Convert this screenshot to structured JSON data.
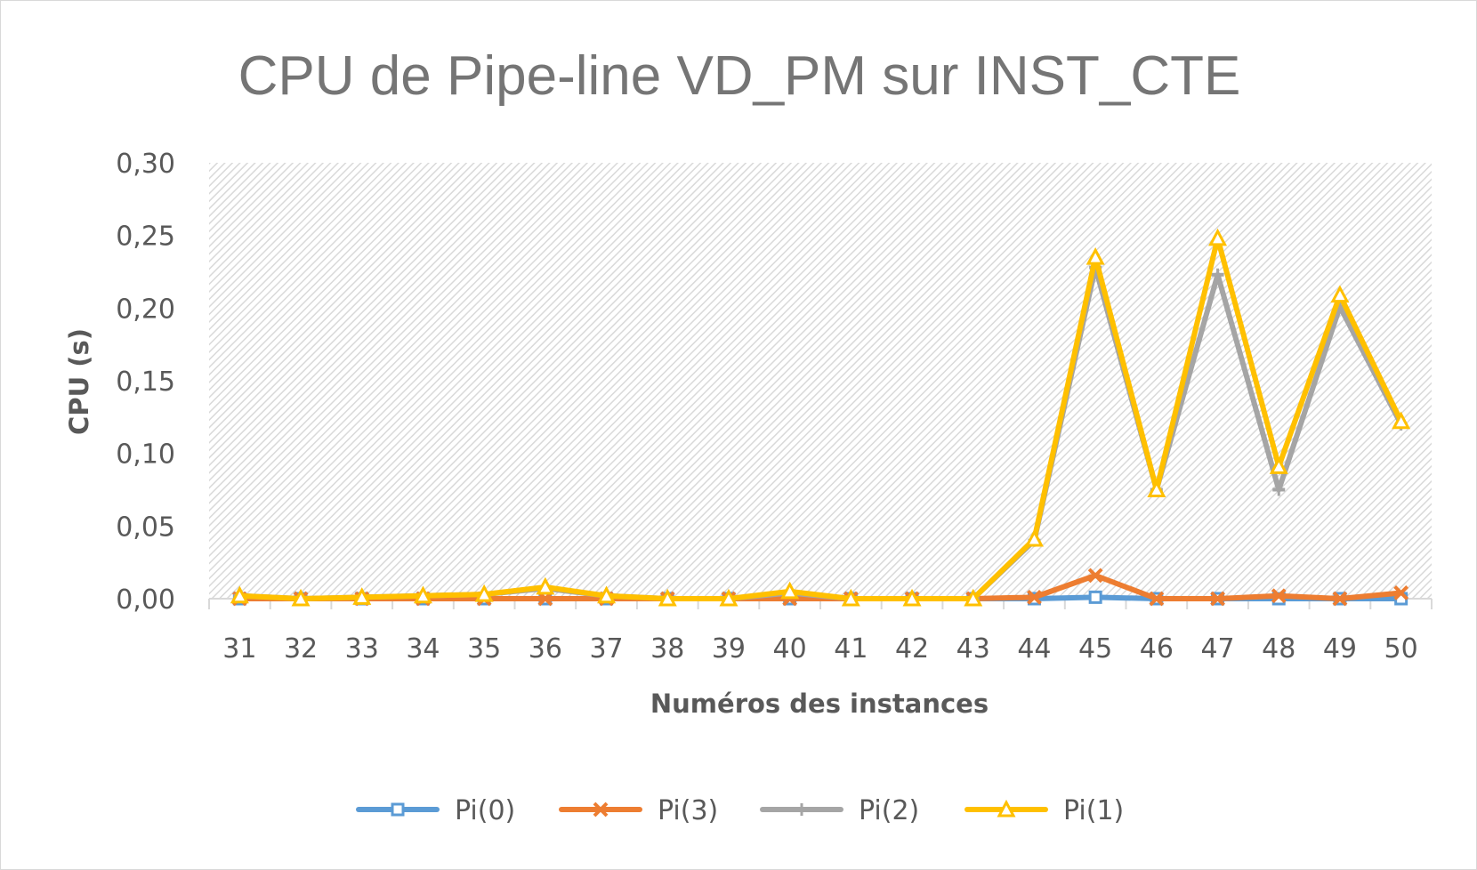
{
  "chart_data": {
    "type": "line",
    "title": "CPU de Pipe-line VD_PM sur INST_CTE",
    "xlabel": "Numéros des instances",
    "ylabel": "CPU (s)",
    "ylim": [
      0,
      0.3
    ],
    "yticks": [
      "0,00",
      "0,05",
      "0,10",
      "0,15",
      "0,20",
      "0,25",
      "0,30"
    ],
    "categories": [
      "31",
      "32",
      "33",
      "34",
      "35",
      "36",
      "37",
      "38",
      "39",
      "40",
      "41",
      "42",
      "43",
      "44",
      "45",
      "46",
      "47",
      "48",
      "49",
      "50"
    ],
    "legend_position": "bottom",
    "background": "diagonal-hatch",
    "series": [
      {
        "name": "Pi(0)",
        "color": "#5b9bd5",
        "marker": "square",
        "values": [
          0,
          0,
          0,
          0,
          0,
          0,
          0,
          0,
          0,
          0,
          0,
          0,
          0,
          0,
          0.001,
          0,
          0,
          0,
          0,
          0
        ]
      },
      {
        "name": "Pi(3)",
        "color": "#ed7d31",
        "marker": "x",
        "values": [
          0,
          0,
          0,
          0,
          0,
          0,
          0,
          0,
          0,
          0,
          0,
          0,
          0,
          0.001,
          0.016,
          0,
          0,
          0.002,
          0,
          0.004
        ]
      },
      {
        "name": "Pi(2)",
        "color": "#a5a5a5",
        "marker": "dash",
        "values": [
          0.002,
          0,
          0.001,
          0.002,
          0.003,
          0.007,
          0.002,
          0,
          0,
          0.004,
          0,
          0,
          0,
          0.04,
          0.228,
          0.075,
          0.223,
          0.075,
          0.201,
          0.12
        ]
      },
      {
        "name": "Pi(1)",
        "color": "#ffc000",
        "marker": "triangle",
        "values": [
          0.002,
          0,
          0.001,
          0.002,
          0.003,
          0.008,
          0.002,
          0,
          0,
          0.005,
          0,
          0,
          0,
          0.041,
          0.235,
          0.075,
          0.248,
          0.091,
          0.209,
          0.122
        ]
      }
    ]
  }
}
